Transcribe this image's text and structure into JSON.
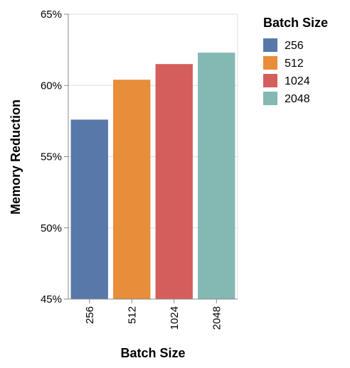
{
  "chart_data": {
    "type": "bar",
    "title": "",
    "xlabel": "Batch Size",
    "ylabel": "Memory Reduction",
    "categories": [
      "256",
      "512",
      "1024",
      "2048"
    ],
    "values": [
      57.6,
      60.4,
      61.5,
      62.3
    ],
    "ylim": [
      45,
      65
    ],
    "yticks": [
      45,
      50,
      55,
      60,
      65
    ],
    "ytick_labels": [
      "45%",
      "50%",
      "55%",
      "60%",
      "65%"
    ],
    "grid": true,
    "colors": [
      "#5778a8",
      "#e88d3a",
      "#d45e5b",
      "#84b8b2"
    ],
    "legend": {
      "title": "Batch Size",
      "position": "right",
      "entries": [
        "256",
        "512",
        "1024",
        "2048"
      ]
    }
  }
}
